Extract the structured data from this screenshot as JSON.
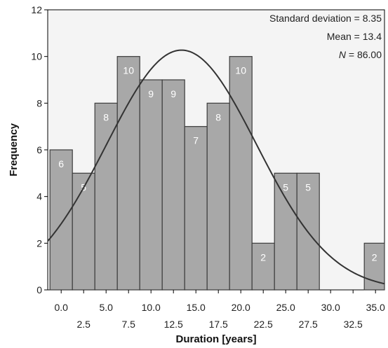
{
  "chart_data": {
    "type": "bar",
    "title": "",
    "xlabel": "Duration [years]",
    "ylabel": "Frequency",
    "xlim": [
      -1.5,
      36.0
    ],
    "ylim": [
      0,
      12
    ],
    "bin_width": 2.5,
    "bins": [
      {
        "start": -1.25,
        "end": 1.25,
        "value": 6
      },
      {
        "start": 1.25,
        "end": 3.75,
        "value": 5
      },
      {
        "start": 3.75,
        "end": 6.25,
        "value": 8
      },
      {
        "start": 6.25,
        "end": 8.75,
        "value": 10
      },
      {
        "start": 8.75,
        "end": 11.25,
        "value": 9
      },
      {
        "start": 11.25,
        "end": 13.75,
        "value": 9
      },
      {
        "start": 13.75,
        "end": 16.25,
        "value": 7
      },
      {
        "start": 16.25,
        "end": 18.75,
        "value": 8
      },
      {
        "start": 18.75,
        "end": 21.25,
        "value": 10
      },
      {
        "start": 21.25,
        "end": 23.75,
        "value": 2
      },
      {
        "start": 23.75,
        "end": 26.25,
        "value": 5
      },
      {
        "start": 26.25,
        "end": 28.75,
        "value": 5
      },
      {
        "start": 33.75,
        "end": 36.25,
        "value": 2
      }
    ],
    "x_ticks_upper": [
      "0.0",
      "5.0",
      "10.0",
      "15.0",
      "20.0",
      "25.0",
      "30.0",
      "35.0"
    ],
    "x_ticks_lower": [
      "2.5",
      "7.5",
      "12.5",
      "17.5",
      "22.5",
      "27.5",
      "32.5"
    ],
    "y_ticks": [
      "0",
      "2",
      "4",
      "6",
      "8",
      "10",
      "12"
    ],
    "normal_curve": {
      "mean": 13.4,
      "sd": 8.35,
      "n": 86
    },
    "stats": [
      "Standard deviation = 8.35",
      "Mean = 13.4",
      "= 86.00"
    ],
    "stats_italic_prefix": "N",
    "colors": {
      "bar_fill": "#a8a8a8",
      "bar_stroke": "#3c3c3c",
      "plot_bg": "#f4f4f4",
      "curve": "#333333",
      "bar_label": "#ffffff"
    }
  }
}
